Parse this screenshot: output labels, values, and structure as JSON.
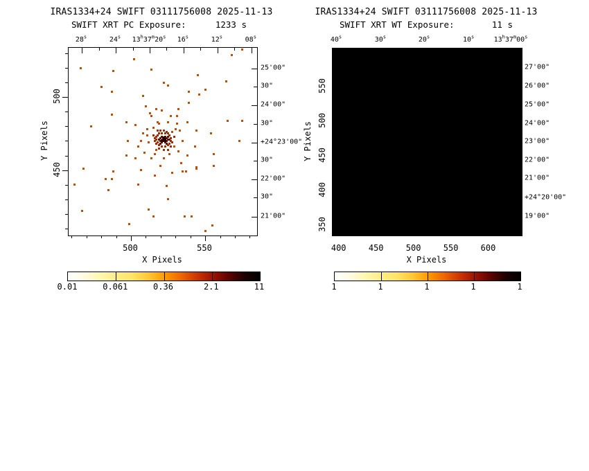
{
  "window": {
    "background": "#ffffff"
  },
  "panels": [
    {
      "title_line1": "IRAS1334+24 SWIFT 03111756008 2025-11-13",
      "exposure_label": "SWIFT XRT PC Exposure:",
      "exposure_value": "1233 s",
      "xlabel": "X Pixels",
      "ylabel": "Y Pixels"
    },
    {
      "title_line1": "IRAS1334+24 SWIFT 03111756008 2025-11-13",
      "exposure_label": "SWIFT XRT WT Exposure:",
      "exposure_value": "11 s",
      "xlabel": "X Pixels",
      "ylabel": "Y Pixels"
    }
  ],
  "colors": {
    "frame": "#000000",
    "wt_image_background": "#000000",
    "event_levels": [
      "#bc4e08",
      "#9e2e00",
      "#611000",
      "#230200"
    ],
    "colormap": [
      "#ffffff",
      "#fffbe0",
      "#fff7b0",
      "#ffed88",
      "#ffe468",
      "#ffc838",
      "#ff9c00",
      "#ef6a00",
      "#d03800",
      "#a01400",
      "#600400",
      "#200000",
      "#000000"
    ]
  },
  "chart_data": [
    {
      "type": "scatter",
      "title": "SWIFT XRT PC Exposure: 1233 s",
      "xlabel": "X Pixels",
      "ylabel": "Y Pixels",
      "xlim": [
        458,
        585
      ],
      "ylim": [
        405,
        534
      ],
      "x_tick_values": [
        500,
        550
      ],
      "y_tick_values": [
        450,
        500
      ],
      "minor_tick_step": 10,
      "ra_tick_labels": [
        {
          "label": "28^s",
          "fx": 0.07
        },
        {
          "label": "24^s",
          "fx": 0.25
        },
        {
          "label": "13^h37^m20^s",
          "fx": 0.43
        },
        {
          "label": "16^s",
          "fx": 0.61
        },
        {
          "label": "12^s",
          "fx": 0.79
        },
        {
          "label": "08^s",
          "fx": 0.97
        }
      ],
      "dec_tick_labels": [
        {
          "label": "25'00\"",
          "fy": 0.111
        },
        {
          "label": "30\"",
          "fy": 0.207
        },
        {
          "label": "24'00\"",
          "fy": 0.306
        },
        {
          "label": "30\"",
          "fy": 0.406
        },
        {
          "label": "+24°23'00\"",
          "fy": 0.506
        },
        {
          "label": "30\"",
          "fy": 0.601
        },
        {
          "label": "22'00\"",
          "fy": 0.701
        },
        {
          "label": "30\"",
          "fy": 0.797
        },
        {
          "label": "21'00\"",
          "fy": 0.9
        }
      ],
      "source_center": {
        "x": 522,
        "y": 471
      },
      "events": {
        "halo": [
          [
            502,
            526
          ],
          [
            568,
            529
          ],
          [
            575,
            533
          ],
          [
            466,
            520
          ],
          [
            514,
            519
          ],
          [
            545,
            515
          ],
          [
            488,
            518
          ],
          [
            480,
            507
          ],
          [
            564,
            511
          ],
          [
            550,
            505
          ],
          [
            487,
            504
          ],
          [
            522,
            510
          ],
          [
            525,
            508
          ],
          [
            508,
            501
          ],
          [
            539,
            504
          ],
          [
            546,
            502
          ],
          [
            539,
            496
          ],
          [
            510,
            494
          ],
          [
            513,
            489
          ],
          [
            521,
            491
          ],
          [
            487,
            488
          ],
          [
            473,
            480
          ],
          [
            497,
            483
          ],
          [
            518,
            483
          ],
          [
            531,
            487
          ],
          [
            544,
            477
          ],
          [
            554,
            475
          ],
          [
            565,
            484
          ],
          [
            575,
            484
          ],
          [
            573,
            470
          ],
          [
            556,
            461
          ],
          [
            544,
            451
          ],
          [
            556,
            453
          ],
          [
            462,
            440
          ],
          [
            468,
            451
          ],
          [
            483,
            444
          ],
          [
            487,
            444
          ],
          [
            488,
            449
          ],
          [
            485,
            436
          ],
          [
            505,
            440
          ],
          [
            524,
            439
          ],
          [
            535,
            449
          ],
          [
            537,
            449
          ],
          [
            544,
            452
          ],
          [
            525,
            430
          ],
          [
            512,
            423
          ],
          [
            515,
            418
          ],
          [
            499,
            413
          ],
          [
            536,
            418
          ],
          [
            541,
            418
          ],
          [
            467,
            422
          ],
          [
            550,
            408
          ],
          [
            555,
            412
          ],
          [
            508,
            475
          ],
          [
            505,
            466
          ],
          [
            509,
            462
          ],
          [
            515,
            479
          ],
          [
            514,
            487
          ],
          [
            531,
            482
          ],
          [
            532,
            463
          ],
          [
            534,
            455
          ],
          [
            514,
            458
          ],
          [
            520,
            453
          ],
          [
            528,
            476
          ],
          [
            529,
            466
          ],
          [
            517,
            464
          ],
          [
            512,
            469
          ],
          [
            511,
            474
          ],
          [
            519,
            482
          ],
          [
            525,
            483
          ],
          [
            530,
            478
          ],
          [
            526,
            461
          ],
          [
            522,
            458
          ],
          [
            511,
            478
          ],
          [
            516,
            461
          ],
          [
            507,
            470
          ],
          [
            535,
            470
          ],
          [
            533,
            477
          ],
          [
            527,
            487
          ],
          [
            517,
            492
          ],
          [
            503,
            481
          ],
          [
            498,
            470
          ],
          [
            503,
            458
          ],
          [
            532,
            492
          ],
          [
            538,
            483
          ],
          [
            543,
            466
          ],
          [
            538,
            460
          ],
          [
            528,
            448
          ],
          [
            516,
            446
          ],
          [
            507,
            450
          ],
          [
            497,
            460
          ]
        ],
        "core_level1": [
          [
            518,
            474
          ],
          [
            519,
            475
          ],
          [
            521,
            475
          ],
          [
            523,
            475
          ],
          [
            525,
            475
          ],
          [
            526,
            474
          ],
          [
            527,
            472
          ],
          [
            527,
            470
          ],
          [
            526,
            468
          ],
          [
            525,
            467
          ],
          [
            523,
            466
          ],
          [
            521,
            466
          ],
          [
            519,
            467
          ],
          [
            518,
            469
          ],
          [
            517,
            471
          ],
          [
            517,
            473
          ],
          [
            528,
            469
          ],
          [
            516,
            472
          ],
          [
            517,
            468
          ],
          [
            519,
            465
          ],
          [
            522,
            464
          ],
          [
            525,
            464
          ],
          [
            527,
            466
          ],
          [
            520,
            477
          ],
          [
            522,
            477
          ],
          [
            524,
            476
          ],
          [
            516,
            470
          ],
          [
            515,
            474
          ],
          [
            518,
            477
          ],
          [
            529,
            473
          ]
        ],
        "core_level2": [
          [
            520,
            472
          ],
          [
            521,
            473
          ],
          [
            523,
            473
          ],
          [
            524,
            472
          ],
          [
            525,
            471
          ],
          [
            524,
            470
          ],
          [
            523,
            469
          ],
          [
            521,
            469
          ],
          [
            520,
            470
          ],
          [
            519,
            471
          ],
          [
            525,
            473
          ],
          [
            526,
            471
          ],
          [
            524,
            468
          ],
          [
            520,
            468
          ]
        ],
        "core_level3": [
          [
            522,
            471
          ],
          [
            523,
            471
          ],
          [
            522,
            472
          ],
          [
            521,
            470
          ],
          [
            523,
            470
          ]
        ]
      },
      "colorbar": {
        "tick_labels": [
          "0.01",
          "0.061",
          "0.36",
          "2.1",
          "11"
        ]
      }
    },
    {
      "type": "heatmap",
      "title": "SWIFT XRT WT Exposure: 11 s",
      "xlabel": "X Pixels",
      "ylabel": "Y Pixels",
      "xlim": [
        391,
        644
      ],
      "ylim": [
        335,
        605
      ],
      "x_tick_values": [
        400,
        450,
        500,
        550,
        600
      ],
      "y_tick_values": [
        350,
        400,
        450,
        500,
        550
      ],
      "ra_tick_labels": [
        {
          "label": "40^s",
          "fx": 0.022
        },
        {
          "label": "30^s",
          "fx": 0.256
        },
        {
          "label": "20^s",
          "fx": 0.487
        },
        {
          "label": "10^s",
          "fx": 0.722
        },
        {
          "label": "13^h37^m00^s",
          "fx": 0.945
        }
      ],
      "dec_tick_labels": [
        {
          "label": "27'00\"",
          "fy": 0.104
        },
        {
          "label": "26'00\"",
          "fy": 0.204
        },
        {
          "label": "25'00\"",
          "fy": 0.304
        },
        {
          "label": "24'00\"",
          "fy": 0.404
        },
        {
          "label": "23'00\"",
          "fy": 0.5
        },
        {
          "label": "22'00\"",
          "fy": 0.6
        },
        {
          "label": "21'00\"",
          "fy": 0.696
        },
        {
          "label": "+24°20'00\"",
          "fy": 0.8
        },
        {
          "label": "19'00\"",
          "fy": 0.9
        }
      ],
      "image_note": "uniform black image (no counts)",
      "events": {
        "halo": [],
        "core_level1": [],
        "core_level2": [],
        "core_level3": []
      },
      "colorbar": {
        "tick_labels": [
          "1",
          "1",
          "1",
          "1",
          "1"
        ]
      }
    }
  ]
}
